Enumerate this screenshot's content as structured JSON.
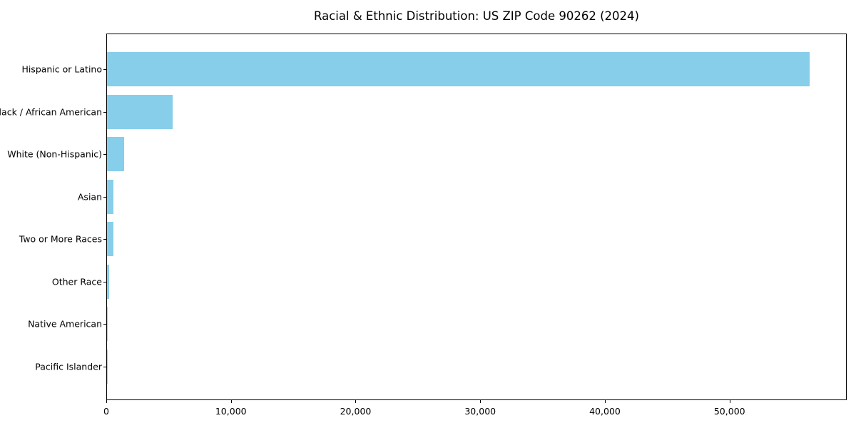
{
  "chart_data": {
    "type": "bar",
    "orientation": "horizontal",
    "title": "Racial & Ethnic Distribution: US ZIP Code 90262 (2024)",
    "categories": [
      "Hispanic or Latino",
      "Black / African American",
      "White (Non-Hispanic)",
      "Asian",
      "Two or More Races",
      "Other Race",
      "Native American",
      "Pacific Islander"
    ],
    "values": [
      56500,
      5300,
      1400,
      540,
      510,
      190,
      25,
      10
    ],
    "xlabel": "",
    "ylabel": "",
    "xlim": [
      0,
      59400
    ],
    "xticks": [
      0,
      10000,
      20000,
      30000,
      40000,
      50000
    ],
    "xtick_labels": [
      "0",
      "10,000",
      "20,000",
      "30,000",
      "40,000",
      "50,000"
    ],
    "bar_color": "#87CEEB",
    "frame_color": "#000000",
    "text_color": "#000000",
    "background_color": "#FFFFFF",
    "grid": false,
    "legend": null
  }
}
